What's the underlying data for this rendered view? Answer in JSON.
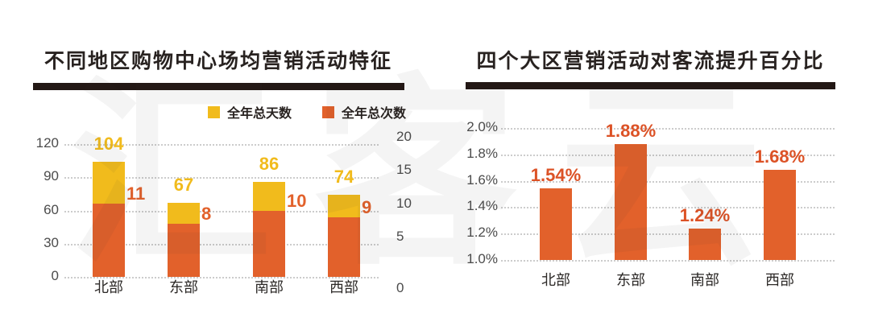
{
  "watermark": {
    "text": "汇客云",
    "color_on_white": "#f1f1f1"
  },
  "style_colors": {
    "title_bar": "#231815",
    "title_text": "#282220",
    "axis_text": "#4c4c4c",
    "category_text": "#2c2927",
    "gridline": "#cccccc"
  },
  "chart_data": [
    {
      "type": "bar",
      "title": "不同地区购物中心场均营销活动特征",
      "categories": [
        "北部",
        "东部",
        "南部",
        "西部"
      ],
      "series": [
        {
          "name": "全年总天数",
          "axis": "left",
          "color": "#F1BB1C",
          "values": [
            104,
            67,
            86,
            74
          ]
        },
        {
          "name": "全年总次数",
          "axis": "right",
          "color": "#E2612B",
          "values": [
            11,
            8,
            10,
            9
          ]
        }
      ],
      "left_axis": {
        "ticks": [
          0,
          30,
          60,
          90,
          120
        ],
        "range": [
          0,
          120
        ]
      },
      "right_axis": {
        "ticks": [
          0,
          5,
          10,
          15,
          20
        ],
        "range": [
          0,
          20
        ]
      },
      "grid": "dotted",
      "legend_position": "top-right"
    },
    {
      "type": "bar",
      "title": "四个大区营销活动对客流提升百分比",
      "categories": [
        "北部",
        "东部",
        "南部",
        "西部"
      ],
      "values": [
        1.54,
        1.88,
        1.24,
        1.68
      ],
      "value_labels": [
        "1.54%",
        "1.88%",
        "1.24%",
        "1.68%"
      ],
      "bar_color": "#E2612B",
      "value_label_color": "#DC5226",
      "y_axis": {
        "ticks": [
          1.0,
          1.2,
          1.4,
          1.6,
          1.8,
          2.0
        ],
        "tick_labels": [
          "1.0%",
          "1.2%",
          "1.4%",
          "1.6%",
          "1.8%",
          "2.0%"
        ],
        "range": [
          1.0,
          2.0
        ]
      },
      "grid": "dotted"
    }
  ]
}
